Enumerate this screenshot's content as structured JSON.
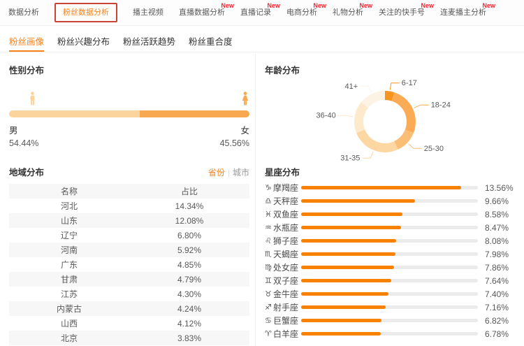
{
  "accent_color": "#f7821b",
  "top_nav": {
    "new_badge_text": "New",
    "highlight_box_color": "#cb4335",
    "tabs": [
      {
        "label": "数据分析",
        "active": false,
        "new": false,
        "highlighted": false
      },
      {
        "label": "粉丝数据分析",
        "active": true,
        "new": false,
        "highlighted": true
      },
      {
        "label": "播主视频",
        "active": false,
        "new": false,
        "highlighted": false
      },
      {
        "label": "直播数据分析",
        "active": false,
        "new": true,
        "highlighted": false
      },
      {
        "label": "直播记录",
        "active": false,
        "new": true,
        "highlighted": false
      },
      {
        "label": "电商分析",
        "active": false,
        "new": true,
        "highlighted": false
      },
      {
        "label": "礼物分析",
        "active": false,
        "new": true,
        "highlighted": false
      },
      {
        "label": "关注的快手号",
        "active": false,
        "new": true,
        "highlighted": false
      },
      {
        "label": "连麦播主分析",
        "active": false,
        "new": true,
        "highlighted": false
      }
    ]
  },
  "sub_nav": {
    "tabs": [
      {
        "label": "粉丝画像",
        "active": true
      },
      {
        "label": "粉丝兴趣分布",
        "active": false
      },
      {
        "label": "粉丝活跃趋势",
        "active": false
      },
      {
        "label": "粉丝重合度",
        "active": false
      }
    ]
  },
  "gender": {
    "title": "性别分布",
    "male": {
      "label": "男",
      "value_text": "54.44%",
      "percent": 54.44,
      "color": "#fbd39d"
    },
    "female": {
      "label": "女",
      "value_text": "45.56%",
      "percent": 45.56,
      "color": "#f7a851"
    }
  },
  "region": {
    "title": "地域分布",
    "toggle": {
      "options": [
        "省份",
        "城市"
      ],
      "selected": "省份",
      "separator": "|"
    },
    "columns": [
      "名称",
      "占比"
    ],
    "rows": [
      [
        "河北",
        "14.34%"
      ],
      [
        "山东",
        "12.08%"
      ],
      [
        "辽宁",
        "6.80%"
      ],
      [
        "河南",
        "5.92%"
      ],
      [
        "广东",
        "4.85%"
      ],
      [
        "甘肃",
        "4.79%"
      ],
      [
        "江苏",
        "4.30%"
      ],
      [
        "内蒙古",
        "4.24%"
      ],
      [
        "山西",
        "4.12%"
      ],
      [
        "北京",
        "3.83%"
      ]
    ]
  },
  "chart_data": [
    {
      "type": "pie",
      "variant": "donut",
      "title": "年龄分布",
      "labels_style": "callout-lines",
      "slices": [
        {
          "label": "6-17",
          "value": 5,
          "color": "#f7941e"
        },
        {
          "label": "18-24",
          "value": 26,
          "color": "#fcab55"
        },
        {
          "label": "25-30",
          "value": 12,
          "color": "#fbbe77"
        },
        {
          "label": "31-35",
          "value": 26,
          "color": "#fcd7a2"
        },
        {
          "label": "36-40",
          "value": 17,
          "color": "#fde9cb"
        },
        {
          "label": "41+",
          "value": 14,
          "color": "#fdf3e4"
        }
      ]
    },
    {
      "type": "bar",
      "orientation": "horizontal",
      "title": "星座分布",
      "xlim": [
        0,
        15
      ],
      "bar_color": "#f88200",
      "track_color": "#ebebeb",
      "categories": [
        "摩羯座",
        "天秤座",
        "双鱼座",
        "水瓶座",
        "狮子座",
        "天蝎座",
        "处女座",
        "双子座",
        "金牛座",
        "射手座",
        "巨蟹座",
        "白羊座"
      ],
      "icons": [
        "♑",
        "♎",
        "♓",
        "♒",
        "♌",
        "♏",
        "♍",
        "♊",
        "♉",
        "♐",
        "♋",
        "♈"
      ],
      "values": [
        13.56,
        9.66,
        8.58,
        8.47,
        8.08,
        7.98,
        7.86,
        7.64,
        7.4,
        7.16,
        6.82,
        6.78
      ],
      "value_labels": [
        "13.56%",
        "9.66%",
        "8.58%",
        "8.47%",
        "8.08%",
        "7.98%",
        "7.86%",
        "7.64%",
        "7.40%",
        "7.16%",
        "6.82%",
        "6.78%"
      ]
    }
  ]
}
